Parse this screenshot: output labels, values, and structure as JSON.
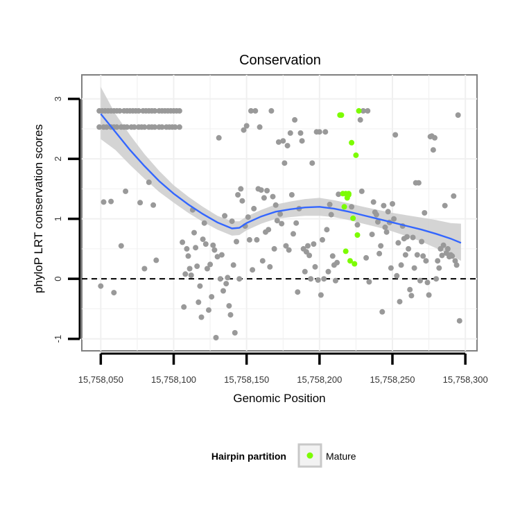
{
  "chart_data": {
    "type": "scatter",
    "title": "Conservation",
    "xlabel": "Genomic Position",
    "ylabel": "phyloP LRT conservation scores",
    "xlim": [
      15758037,
      15758308
    ],
    "ylim": [
      -1.2,
      3.4
    ],
    "x_ticks": [
      15758050,
      15758100,
      15758150,
      15758200,
      15758250,
      15758300
    ],
    "x_tick_labels": [
      "15,758,050",
      "15,758,100",
      "15,758,150",
      "15,758,200",
      "15,758,250",
      "15,758,300"
    ],
    "y_ticks": [
      -1,
      0,
      1,
      2,
      3
    ],
    "y_tick_labels": [
      "-1",
      "0",
      "1",
      "2",
      "3"
    ],
    "reference_line": {
      "y": 0,
      "style": "dashed"
    },
    "colors": {
      "other_points": "#999999",
      "mature_points": "#7cfc00",
      "smooth_line": "#3366ff",
      "confidence_band": "#cccccc",
      "panel_border": "#7f7f7f",
      "grid": "#f0f0f0"
    },
    "legend": {
      "title": "Hairpin partition",
      "entries": [
        {
          "label": "Mature",
          "color": "#7cfc00"
        }
      ],
      "placement": "bottom"
    },
    "smooth": {
      "x": [
        15758050,
        15758060,
        15758070,
        15758080,
        15758090,
        15758100,
        15758110,
        15758120,
        15758130,
        15758140,
        15758145,
        15758150,
        15758160,
        15758170,
        15758180,
        15758190,
        15758200,
        15758210,
        15758220,
        15758230,
        15758240,
        15758250,
        15758260,
        15758270,
        15758280,
        15758290,
        15758297
      ],
      "y": [
        2.75,
        2.45,
        2.15,
        1.88,
        1.63,
        1.42,
        1.24,
        1.08,
        0.94,
        0.84,
        0.85,
        0.93,
        1.04,
        1.12,
        1.16,
        1.19,
        1.2,
        1.17,
        1.12,
        1.06,
        1.0,
        0.94,
        0.88,
        0.82,
        0.75,
        0.67,
        0.6
      ],
      "upper": [
        3.2,
        2.75,
        2.4,
        2.08,
        1.8,
        1.56,
        1.37,
        1.2,
        1.05,
        0.96,
        0.96,
        1.04,
        1.15,
        1.24,
        1.29,
        1.33,
        1.35,
        1.31,
        1.26,
        1.2,
        1.15,
        1.1,
        1.06,
        1.02,
        0.98,
        0.93,
        0.92
      ],
      "lower": [
        2.33,
        2.15,
        1.9,
        1.67,
        1.45,
        1.27,
        1.1,
        0.95,
        0.82,
        0.72,
        0.73,
        0.81,
        0.92,
        1.0,
        1.03,
        1.05,
        1.05,
        1.03,
        0.98,
        0.92,
        0.86,
        0.79,
        0.71,
        0.62,
        0.51,
        0.4,
        0.3
      ]
    },
    "series": [
      {
        "name": "Other",
        "points": [
          [
            15758049,
            2.8
          ],
          [
            15758051,
            2.8
          ],
          [
            15758053,
            2.8
          ],
          [
            15758055,
            2.8
          ],
          [
            15758057,
            2.8
          ],
          [
            15758059,
            2.8
          ],
          [
            15758061,
            2.8
          ],
          [
            15758063,
            2.8
          ],
          [
            15758066,
            2.8
          ],
          [
            15758068,
            2.8
          ],
          [
            15758070,
            2.8
          ],
          [
            15758072,
            2.8
          ],
          [
            15758074,
            2.8
          ],
          [
            15758076,
            2.8
          ],
          [
            15758079,
            2.8
          ],
          [
            15758081,
            2.8
          ],
          [
            15758083,
            2.8
          ],
          [
            15758085,
            2.8
          ],
          [
            15758087,
            2.8
          ],
          [
            15758090,
            2.8
          ],
          [
            15758092,
            2.8
          ],
          [
            15758094,
            2.8
          ],
          [
            15758096,
            2.8
          ],
          [
            15758098,
            2.8
          ],
          [
            15758100,
            2.8
          ],
          [
            15758102,
            2.8
          ],
          [
            15758104,
            2.8
          ],
          [
            15758049,
            2.53
          ],
          [
            15758052,
            2.53
          ],
          [
            15758054,
            2.53
          ],
          [
            15758057,
            2.53
          ],
          [
            15758059,
            2.53
          ],
          [
            15758061,
            2.53
          ],
          [
            15758064,
            2.53
          ],
          [
            15758066,
            2.53
          ],
          [
            15758068,
            2.53
          ],
          [
            15758071,
            2.53
          ],
          [
            15758073,
            2.53
          ],
          [
            15758076,
            2.53
          ],
          [
            15758078,
            2.53
          ],
          [
            15758080,
            2.53
          ],
          [
            15758083,
            2.53
          ],
          [
            15758085,
            2.53
          ],
          [
            15758087,
            2.53
          ],
          [
            15758090,
            2.53
          ],
          [
            15758092,
            2.53
          ],
          [
            15758095,
            2.53
          ],
          [
            15758097,
            2.53
          ],
          [
            15758099,
            2.53
          ],
          [
            15758101,
            2.53
          ],
          [
            15758104,
            2.53
          ],
          [
            15758050,
            -0.12
          ],
          [
            15758052,
            1.28
          ],
          [
            15758057,
            1.29
          ],
          [
            15758059,
            -0.23
          ],
          [
            15758064,
            0.55
          ],
          [
            15758067,
            1.46
          ],
          [
            15758077,
            1.27
          ],
          [
            15758080,
            0.17
          ],
          [
            15758083,
            1.61
          ],
          [
            15758086,
            1.23
          ],
          [
            15758088,
            0.31
          ],
          [
            15758106,
            0.61
          ],
          [
            15758107,
            -0.47
          ],
          [
            15758108,
            0.08
          ],
          [
            15758109,
            0.5
          ],
          [
            15758110,
            0.38
          ],
          [
            15758111,
            0.17
          ],
          [
            15758112,
            0.06
          ],
          [
            15758113,
            1.15
          ],
          [
            15758114,
            0.77
          ],
          [
            15758115,
            0.52
          ],
          [
            15758116,
            0.21
          ],
          [
            15758117,
            -0.39
          ],
          [
            15758118,
            -0.12
          ],
          [
            15758119,
            -0.64
          ],
          [
            15758120,
            0.66
          ],
          [
            15758121,
            0.93
          ],
          [
            15758122,
            0.58
          ],
          [
            15758123,
            0.17
          ],
          [
            15758124,
            -0.52
          ],
          [
            15758125,
            0.24
          ],
          [
            15758126,
            -0.3
          ],
          [
            15758127,
            0.56
          ],
          [
            15758128,
            0.48
          ],
          [
            15758129,
            -0.98
          ],
          [
            15758130,
            0.37
          ],
          [
            15758131,
            2.35
          ],
          [
            15758132,
            0.0
          ],
          [
            15758133,
            0.4
          ],
          [
            15758134,
            -0.2
          ],
          [
            15758135,
            1.05
          ],
          [
            15758136,
            -0.08
          ],
          [
            15758137,
            0.02
          ],
          [
            15758138,
            -0.45
          ],
          [
            15758139,
            -0.6
          ],
          [
            15758140,
            0.96
          ],
          [
            15758141,
            0.23
          ],
          [
            15758142,
            -0.9
          ],
          [
            15758143,
            0.62
          ],
          [
            15758144,
            1.4
          ],
          [
            15758145,
            0.0
          ],
          [
            15758146,
            1.5
          ],
          [
            15758147,
            1.3
          ],
          [
            15758148,
            2.48
          ],
          [
            15758149,
            0.88
          ],
          [
            15758150,
            2.55
          ],
          [
            15758151,
            1.03
          ],
          [
            15758152,
            0.65
          ],
          [
            15758153,
            2.8
          ],
          [
            15758154,
            0.15
          ],
          [
            15758155,
            1.17
          ],
          [
            15758156,
            2.8
          ],
          [
            15758157,
            0.65
          ],
          [
            15758158,
            1.5
          ],
          [
            15758159,
            2.53
          ],
          [
            15758160,
            1.48
          ],
          [
            15758161,
            0.3
          ],
          [
            15758162,
            1.35
          ],
          [
            15758163,
            0.78
          ],
          [
            15758164,
            1.47
          ],
          [
            15758165,
            0.82
          ],
          [
            15758166,
            0.2
          ],
          [
            15758167,
            2.8
          ],
          [
            15758168,
            1.37
          ],
          [
            15758169,
            0.5
          ],
          [
            15758170,
            1.23
          ],
          [
            15758171,
            0.97
          ],
          [
            15758172,
            2.28
          ],
          [
            15758173,
            1.08
          ],
          [
            15758174,
            0.92
          ],
          [
            15758175,
            2.3
          ],
          [
            15758176,
            1.93
          ],
          [
            15758177,
            0.55
          ],
          [
            15758178,
            2.22
          ],
          [
            15758179,
            0.48
          ],
          [
            15758180,
            2.43
          ],
          [
            15758181,
            1.4
          ],
          [
            15758182,
            0.75
          ],
          [
            15758183,
            2.65
          ],
          [
            15758184,
            0.93
          ],
          [
            15758185,
            -0.22
          ],
          [
            15758186,
            1.17
          ],
          [
            15758187,
            2.43
          ],
          [
            15758188,
            2.3
          ],
          [
            15758189,
            0.5
          ],
          [
            15758190,
            0.12
          ],
          [
            15758191,
            0.45
          ],
          [
            15758192,
            0.55
          ],
          [
            15758193,
            0.39
          ],
          [
            15758194,
            0.0
          ],
          [
            15758195,
            1.93
          ],
          [
            15758196,
            0.58
          ],
          [
            15758197,
            0.2
          ],
          [
            15758198,
            2.45
          ],
          [
            15758199,
            -0.02
          ],
          [
            15758200,
            2.45
          ],
          [
            15758201,
            -0.27
          ],
          [
            15758202,
            0.65
          ],
          [
            15758203,
            0.0
          ],
          [
            15758204,
            2.45
          ],
          [
            15758205,
            0.82
          ],
          [
            15758206,
            0.12
          ],
          [
            15758207,
            1.24
          ],
          [
            15758208,
            1.07
          ],
          [
            15758209,
            0.38
          ],
          [
            15758210,
            0.23
          ],
          [
            15758211,
            -0.03
          ],
          [
            15758212,
            0.27
          ],
          [
            15758213,
            1.41
          ],
          [
            15758222,
            1.2
          ],
          [
            15758226,
            0.9
          ],
          [
            15758228,
            2.65
          ],
          [
            15758229,
            1.46
          ],
          [
            15758230,
            2.8
          ],
          [
            15758232,
            0.35
          ],
          [
            15758233,
            2.8
          ],
          [
            15758234,
            -0.05
          ],
          [
            15758236,
            0.74
          ],
          [
            15758237,
            1.28
          ],
          [
            15758238,
            1.11
          ],
          [
            15758239,
            1.07
          ],
          [
            15758240,
            0.95
          ],
          [
            15758241,
            0.42
          ],
          [
            15758242,
            0.55
          ],
          [
            15758243,
            -0.55
          ],
          [
            15758244,
            1.22
          ],
          [
            15758245,
            0.86
          ],
          [
            15758246,
            0.78
          ],
          [
            15758247,
            1.12
          ],
          [
            15758248,
            0.94
          ],
          [
            15758249,
            0.18
          ],
          [
            15758250,
            1.25
          ],
          [
            15758251,
            1.0
          ],
          [
            15758252,
            2.4
          ],
          [
            15758253,
            0.05
          ],
          [
            15758254,
            0.6
          ],
          [
            15758255,
            -0.38
          ],
          [
            15758256,
            0.23
          ],
          [
            15758257,
            0.88
          ],
          [
            15758258,
            0.67
          ],
          [
            15758259,
            0.4
          ],
          [
            15758260,
            0.7
          ],
          [
            15758261,
            0.5
          ],
          [
            15758262,
            -0.18
          ],
          [
            15758263,
            -0.28
          ],
          [
            15758264,
            0.69
          ],
          [
            15758265,
            0.18
          ],
          [
            15758266,
            1.6
          ],
          [
            15758267,
            0.4
          ],
          [
            15758268,
            1.6
          ],
          [
            15758269,
            -0.03
          ],
          [
            15758270,
            0.62
          ],
          [
            15758271,
            0.38
          ],
          [
            15758272,
            1.1
          ],
          [
            15758273,
            0.3
          ],
          [
            15758274,
            -0.06
          ],
          [
            15758275,
            -0.27
          ],
          [
            15758276,
            2.37
          ],
          [
            15758277,
            2.38
          ],
          [
            15758278,
            2.15
          ],
          [
            15758279,
            2.35
          ],
          [
            15758280,
            0.0
          ],
          [
            15758281,
            0.3
          ],
          [
            15758282,
            0.18
          ],
          [
            15758283,
            0.5
          ],
          [
            15758284,
            0.39
          ],
          [
            15758285,
            0.56
          ],
          [
            15758286,
            1.22
          ],
          [
            15758287,
            0.43
          ],
          [
            15758288,
            0.5
          ],
          [
            15758289,
            0.37
          ],
          [
            15758290,
            0.4
          ],
          [
            15758291,
            0.38
          ],
          [
            15758292,
            1.38
          ],
          [
            15758293,
            0.3
          ],
          [
            15758294,
            0.23
          ],
          [
            15758295,
            2.73
          ],
          [
            15758296,
            -0.7
          ]
        ]
      },
      {
        "name": "Mature",
        "points": [
          [
            15758214,
            2.73
          ],
          [
            15758215,
            2.73
          ],
          [
            15758216,
            1.42
          ],
          [
            15758217,
            1.2
          ],
          [
            15758218,
            1.42
          ],
          [
            15758218,
            0.46
          ],
          [
            15758219,
            1.35
          ],
          [
            15758220,
            1.4
          ],
          [
            15758221,
            0.3
          ],
          [
            15758222,
            2.27
          ],
          [
            15758223,
            1.01
          ],
          [
            15758224,
            0.25
          ],
          [
            15758225,
            2.06
          ],
          [
            15758226,
            0.73
          ],
          [
            15758227,
            2.8
          ],
          [
            15758220,
            1.42
          ]
        ]
      }
    ]
  }
}
